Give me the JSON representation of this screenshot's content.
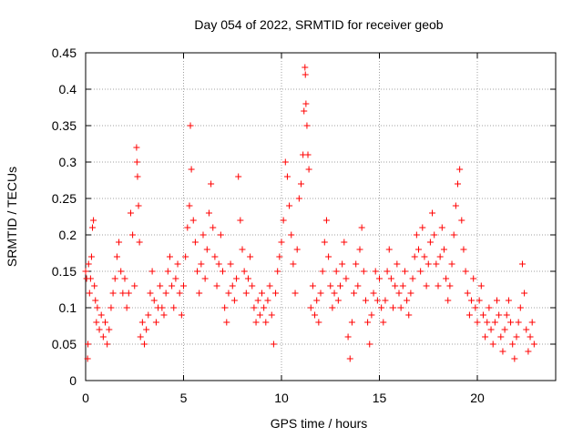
{
  "chart_data": {
    "type": "scatter",
    "title": "Day 054 of 2022, SRMTID for receiver geob",
    "xlabel": "GPS time / hours",
    "ylabel": "SRMTID / TECUs",
    "xlim": [
      0,
      24
    ],
    "ylim": [
      0,
      0.45
    ],
    "xticks": [
      0,
      5,
      10,
      15,
      20
    ],
    "xtick_labels": [
      "0",
      "5",
      "10",
      "15",
      "20"
    ],
    "yticks": [
      0,
      0.05,
      0.1,
      0.15,
      0.2,
      0.25,
      0.3,
      0.35,
      0.4,
      0.45
    ],
    "ytick_labels": [
      "0",
      "0.05",
      "0.1",
      "0.15",
      "0.2",
      "0.25",
      "0.3",
      "0.35",
      "0.4",
      "0.45"
    ],
    "grid": true,
    "marker": "+",
    "color": "#ff0000",
    "series": [
      {
        "name": "SRMTID",
        "points": [
          [
            0.0,
            0.15
          ],
          [
            0.05,
            0.14
          ],
          [
            0.1,
            0.03
          ],
          [
            0.12,
            0.05
          ],
          [
            0.15,
            0.16
          ],
          [
            0.2,
            0.12
          ],
          [
            0.25,
            0.14
          ],
          [
            0.3,
            0.17
          ],
          [
            0.35,
            0.21
          ],
          [
            0.4,
            0.22
          ],
          [
            0.45,
            0.13
          ],
          [
            0.5,
            0.11
          ],
          [
            0.55,
            0.08
          ],
          [
            0.6,
            0.1
          ],
          [
            0.7,
            0.07
          ],
          [
            0.8,
            0.09
          ],
          [
            0.9,
            0.06
          ],
          [
            1.0,
            0.08
          ],
          [
            1.1,
            0.05
          ],
          [
            1.2,
            0.07
          ],
          [
            1.3,
            0.1
          ],
          [
            1.4,
            0.12
          ],
          [
            1.5,
            0.14
          ],
          [
            1.6,
            0.17
          ],
          [
            1.7,
            0.19
          ],
          [
            1.8,
            0.15
          ],
          [
            1.9,
            0.12
          ],
          [
            2.0,
            0.14
          ],
          [
            2.1,
            0.1
          ],
          [
            2.2,
            0.12
          ],
          [
            2.3,
            0.23
          ],
          [
            2.4,
            0.2
          ],
          [
            2.5,
            0.13
          ],
          [
            2.6,
            0.32
          ],
          [
            2.62,
            0.3
          ],
          [
            2.65,
            0.28
          ],
          [
            2.7,
            0.24
          ],
          [
            2.75,
            0.19
          ],
          [
            2.8,
            0.06
          ],
          [
            2.9,
            0.08
          ],
          [
            3.0,
            0.05
          ],
          [
            3.1,
            0.07
          ],
          [
            3.2,
            0.09
          ],
          [
            3.3,
            0.12
          ],
          [
            3.4,
            0.15
          ],
          [
            3.5,
            0.11
          ],
          [
            3.6,
            0.08
          ],
          [
            3.7,
            0.1
          ],
          [
            3.8,
            0.13
          ],
          [
            3.9,
            0.1
          ],
          [
            4.0,
            0.09
          ],
          [
            4.1,
            0.12
          ],
          [
            4.2,
            0.15
          ],
          [
            4.3,
            0.17
          ],
          [
            4.4,
            0.13
          ],
          [
            4.5,
            0.1
          ],
          [
            4.6,
            0.14
          ],
          [
            4.7,
            0.16
          ],
          [
            4.8,
            0.12
          ],
          [
            4.9,
            0.09
          ],
          [
            5.0,
            0.13
          ],
          [
            5.1,
            0.17
          ],
          [
            5.2,
            0.21
          ],
          [
            5.3,
            0.24
          ],
          [
            5.35,
            0.35
          ],
          [
            5.4,
            0.29
          ],
          [
            5.5,
            0.22
          ],
          [
            5.6,
            0.19
          ],
          [
            5.7,
            0.15
          ],
          [
            5.8,
            0.12
          ],
          [
            5.9,
            0.16
          ],
          [
            6.0,
            0.2
          ],
          [
            6.1,
            0.14
          ],
          [
            6.2,
            0.18
          ],
          [
            6.3,
            0.23
          ],
          [
            6.4,
            0.27
          ],
          [
            6.5,
            0.21
          ],
          [
            6.6,
            0.17
          ],
          [
            6.7,
            0.13
          ],
          [
            6.8,
            0.16
          ],
          [
            6.9,
            0.2
          ],
          [
            7.0,
            0.15
          ],
          [
            7.1,
            0.1
          ],
          [
            7.2,
            0.08
          ],
          [
            7.3,
            0.12
          ],
          [
            7.4,
            0.16
          ],
          [
            7.5,
            0.13
          ],
          [
            7.6,
            0.11
          ],
          [
            7.7,
            0.14
          ],
          [
            7.8,
            0.28
          ],
          [
            7.9,
            0.22
          ],
          [
            8.0,
            0.18
          ],
          [
            8.1,
            0.15
          ],
          [
            8.2,
            0.12
          ],
          [
            8.3,
            0.14
          ],
          [
            8.4,
            0.17
          ],
          [
            8.5,
            0.13
          ],
          [
            8.6,
            0.1
          ],
          [
            8.7,
            0.08
          ],
          [
            8.8,
            0.11
          ],
          [
            8.9,
            0.09
          ],
          [
            9.0,
            0.12
          ],
          [
            9.1,
            0.1
          ],
          [
            9.2,
            0.08
          ],
          [
            9.3,
            0.11
          ],
          [
            9.4,
            0.13
          ],
          [
            9.5,
            0.09
          ],
          [
            9.6,
            0.05
          ],
          [
            9.7,
            0.12
          ],
          [
            9.8,
            0.15
          ],
          [
            9.9,
            0.17
          ],
          [
            10.0,
            0.19
          ],
          [
            10.1,
            0.22
          ],
          [
            10.2,
            0.3
          ],
          [
            10.3,
            0.28
          ],
          [
            10.4,
            0.24
          ],
          [
            10.5,
            0.2
          ],
          [
            10.6,
            0.16
          ],
          [
            10.7,
            0.12
          ],
          [
            10.8,
            0.18
          ],
          [
            10.9,
            0.25
          ],
          [
            11.0,
            0.27
          ],
          [
            11.1,
            0.31
          ],
          [
            11.15,
            0.37
          ],
          [
            11.2,
            0.43
          ],
          [
            11.22,
            0.42
          ],
          [
            11.25,
            0.38
          ],
          [
            11.3,
            0.35
          ],
          [
            11.35,
            0.31
          ],
          [
            11.4,
            0.29
          ],
          [
            11.5,
            0.1
          ],
          [
            11.6,
            0.13
          ],
          [
            11.7,
            0.09
          ],
          [
            11.8,
            0.11
          ],
          [
            11.9,
            0.08
          ],
          [
            12.0,
            0.12
          ],
          [
            12.1,
            0.15
          ],
          [
            12.2,
            0.19
          ],
          [
            12.3,
            0.22
          ],
          [
            12.4,
            0.17
          ],
          [
            12.5,
            0.13
          ],
          [
            12.6,
            0.1
          ],
          [
            12.7,
            0.12
          ],
          [
            12.8,
            0.15
          ],
          [
            12.9,
            0.11
          ],
          [
            13.0,
            0.13
          ],
          [
            13.1,
            0.16
          ],
          [
            13.2,
            0.19
          ],
          [
            13.3,
            0.14
          ],
          [
            13.4,
            0.06
          ],
          [
            13.5,
            0.03
          ],
          [
            13.6,
            0.08
          ],
          [
            13.7,
            0.12
          ],
          [
            13.8,
            0.16
          ],
          [
            13.9,
            0.13
          ],
          [
            14.0,
            0.18
          ],
          [
            14.1,
            0.21
          ],
          [
            14.2,
            0.15
          ],
          [
            14.3,
            0.11
          ],
          [
            14.4,
            0.08
          ],
          [
            14.5,
            0.05
          ],
          [
            14.6,
            0.09
          ],
          [
            14.7,
            0.12
          ],
          [
            14.8,
            0.15
          ],
          [
            14.9,
            0.11
          ],
          [
            15.0,
            0.14
          ],
          [
            15.1,
            0.1
          ],
          [
            15.2,
            0.08
          ],
          [
            15.3,
            0.11
          ],
          [
            15.4,
            0.15
          ],
          [
            15.5,
            0.18
          ],
          [
            15.6,
            0.14
          ],
          [
            15.7,
            0.1
          ],
          [
            15.8,
            0.13
          ],
          [
            15.9,
            0.16
          ],
          [
            16.0,
            0.12
          ],
          [
            16.1,
            0.1
          ],
          [
            16.2,
            0.13
          ],
          [
            16.3,
            0.15
          ],
          [
            16.4,
            0.11
          ],
          [
            16.5,
            0.09
          ],
          [
            16.6,
            0.12
          ],
          [
            16.7,
            0.14
          ],
          [
            16.8,
            0.17
          ],
          [
            16.9,
            0.2
          ],
          [
            17.0,
            0.18
          ],
          [
            17.1,
            0.15
          ],
          [
            17.2,
            0.21
          ],
          [
            17.3,
            0.17
          ],
          [
            17.4,
            0.13
          ],
          [
            17.5,
            0.16
          ],
          [
            17.6,
            0.19
          ],
          [
            17.7,
            0.23
          ],
          [
            17.8,
            0.2
          ],
          [
            17.9,
            0.16
          ],
          [
            18.0,
            0.13
          ],
          [
            18.1,
            0.17
          ],
          [
            18.2,
            0.21
          ],
          [
            18.3,
            0.18
          ],
          [
            18.4,
            0.14
          ],
          [
            18.5,
            0.11
          ],
          [
            18.6,
            0.13
          ],
          [
            18.7,
            0.16
          ],
          [
            18.8,
            0.2
          ],
          [
            18.9,
            0.24
          ],
          [
            19.0,
            0.27
          ],
          [
            19.1,
            0.29
          ],
          [
            19.2,
            0.22
          ],
          [
            19.3,
            0.18
          ],
          [
            19.4,
            0.15
          ],
          [
            19.5,
            0.12
          ],
          [
            19.6,
            0.09
          ],
          [
            19.7,
            0.11
          ],
          [
            19.8,
            0.14
          ],
          [
            19.9,
            0.1
          ],
          [
            20.0,
            0.08
          ],
          [
            20.1,
            0.11
          ],
          [
            20.2,
            0.13
          ],
          [
            20.3,
            0.09
          ],
          [
            20.4,
            0.06
          ],
          [
            20.5,
            0.08
          ],
          [
            20.6,
            0.1
          ],
          [
            20.7,
            0.07
          ],
          [
            20.8,
            0.05
          ],
          [
            20.9,
            0.08
          ],
          [
            21.0,
            0.11
          ],
          [
            21.1,
            0.09
          ],
          [
            21.2,
            0.06
          ],
          [
            21.3,
            0.04
          ],
          [
            21.4,
            0.07
          ],
          [
            21.5,
            0.09
          ],
          [
            21.6,
            0.11
          ],
          [
            21.7,
            0.08
          ],
          [
            21.8,
            0.05
          ],
          [
            21.9,
            0.03
          ],
          [
            22.0,
            0.06
          ],
          [
            22.1,
            0.08
          ],
          [
            22.2,
            0.1
          ],
          [
            22.3,
            0.16
          ],
          [
            22.4,
            0.12
          ],
          [
            22.5,
            0.07
          ],
          [
            22.6,
            0.04
          ],
          [
            22.7,
            0.06
          ],
          [
            22.8,
            0.08
          ],
          [
            22.9,
            0.05
          ]
        ]
      }
    ]
  }
}
